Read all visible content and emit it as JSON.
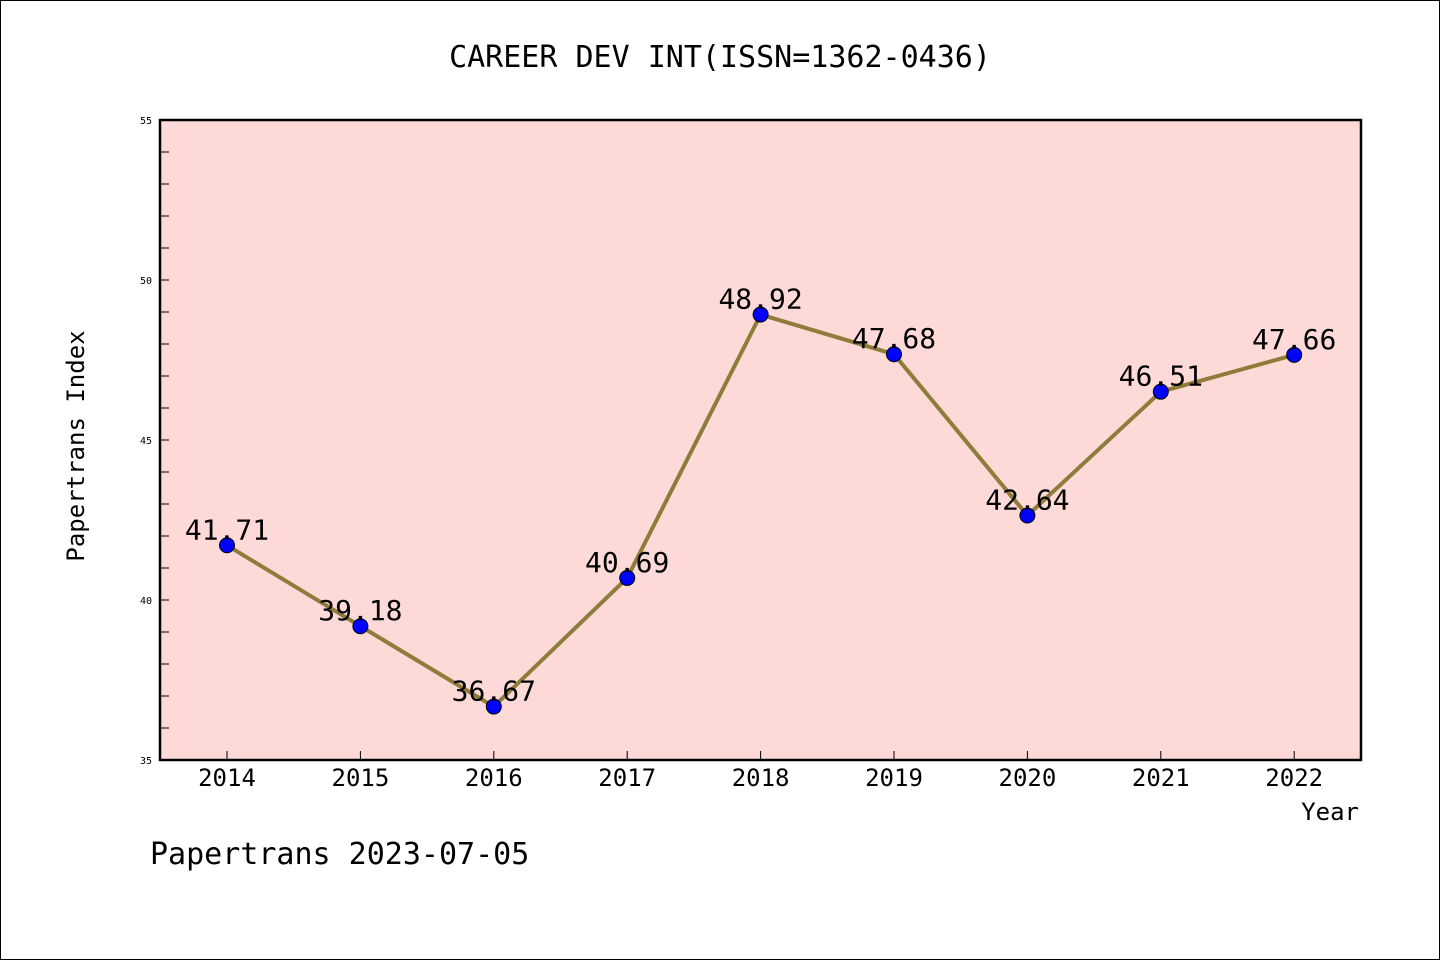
{
  "footer_text": "Papertrans 2023-07-05",
  "colors": {
    "plot_background": "#fddad7",
    "line": "#8f7b3a",
    "marker": "#0000ff"
  },
  "chart_data": {
    "type": "line",
    "title": "CAREER DEV INT(ISSN=1362-0436)",
    "xlabel": "Year",
    "ylabel": "Papertrans Index",
    "x": [
      "2014",
      "2015",
      "2016",
      "2017",
      "2018",
      "2019",
      "2020",
      "2021",
      "2022"
    ],
    "values": [
      41.71,
      39.18,
      36.67,
      40.69,
      48.92,
      47.68,
      42.64,
      46.51,
      47.66
    ],
    "data_labels": [
      "41.71",
      "39.18",
      "36.67",
      "40.69",
      "48.92",
      "47.68",
      "42.64",
      "46.51",
      "47.66"
    ],
    "ylim": [
      35,
      55
    ],
    "y_ticks": [
      "35",
      "40",
      "45",
      "50",
      "55"
    ],
    "grid": false,
    "legend": false
  }
}
